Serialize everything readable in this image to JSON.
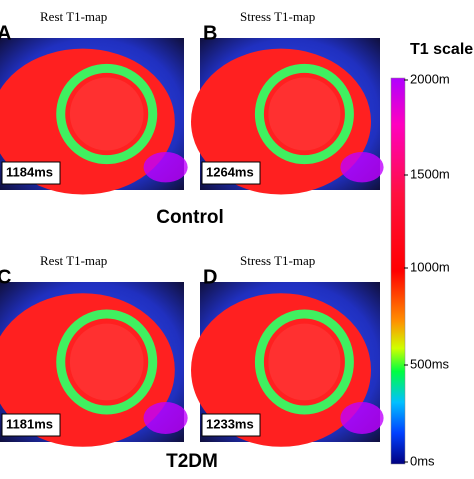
{
  "panels": [
    {
      "letter": "A",
      "title": "Rest T1-map",
      "value_label": "1184ms"
    },
    {
      "letter": "B",
      "title": "Stress T1-map",
      "value_label": "1264ms"
    },
    {
      "letter": "C",
      "title": "Rest T1-map",
      "value_label": "1181ms"
    },
    {
      "letter": "D",
      "title": "Stress T1-map",
      "value_label": "1233ms"
    }
  ],
  "group_labels": [
    "Control",
    "T2DM"
  ],
  "colorbar": {
    "title": "T1 scale",
    "tick_labels": [
      "2000m",
      "1500m",
      "1000m",
      "500ms",
      "0ms"
    ]
  }
}
